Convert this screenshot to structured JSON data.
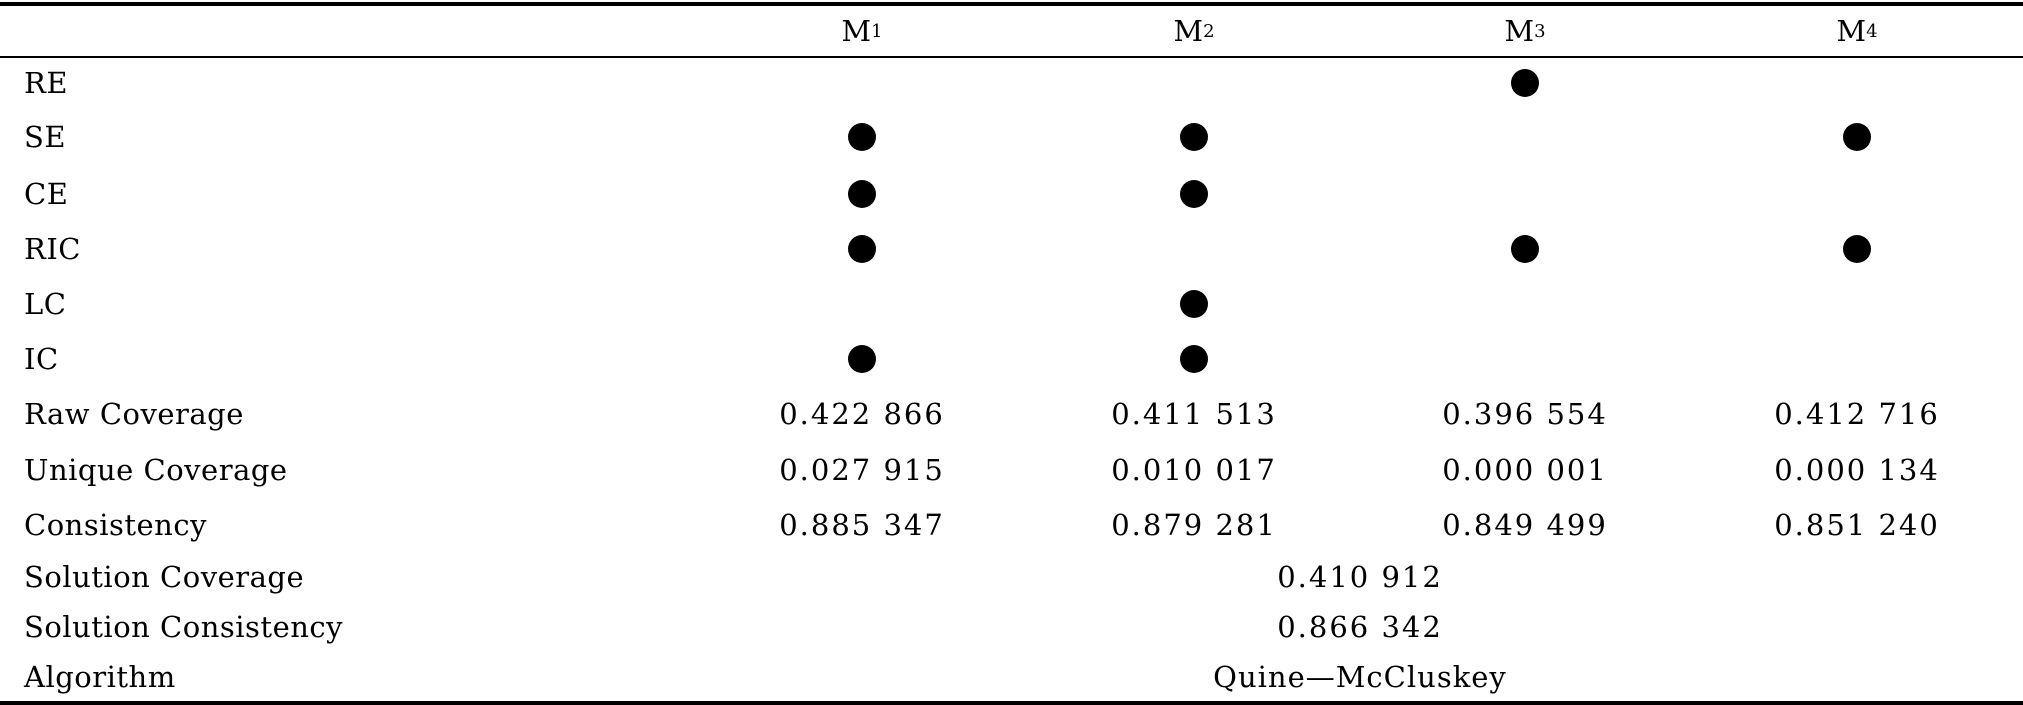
{
  "header": {
    "columns": [
      {
        "base": "M",
        "sub": "1"
      },
      {
        "base": "M",
        "sub": "2"
      },
      {
        "base": "M",
        "sub": "3"
      },
      {
        "base": "M",
        "sub": "4"
      }
    ]
  },
  "condition_rows": [
    {
      "label": "RE",
      "cells": [
        false,
        false,
        true,
        false
      ]
    },
    {
      "label": "SE",
      "cells": [
        true,
        true,
        false,
        true
      ]
    },
    {
      "label": "CE",
      "cells": [
        true,
        true,
        false,
        false
      ]
    },
    {
      "label": "RIC",
      "cells": [
        true,
        false,
        true,
        true
      ]
    },
    {
      "label": "LC",
      "cells": [
        false,
        true,
        false,
        false
      ]
    },
    {
      "label": "IC",
      "cells": [
        true,
        true,
        false,
        false
      ]
    }
  ],
  "value_rows": [
    {
      "label": "Raw Coverage",
      "values": [
        "0.422 866",
        "0.411 513",
        "0.396 554",
        "0.412 716"
      ]
    },
    {
      "label": "Unique Coverage",
      "values": [
        "0.027 915",
        "0.010 017",
        "0.000 001",
        "0.000 134"
      ]
    },
    {
      "label": "Consistency",
      "values": [
        "0.885 347",
        "0.879 281",
        "0.849 499",
        "0.851 240"
      ]
    }
  ],
  "summary_rows": [
    {
      "label": "Solution Coverage",
      "value": "0.410 912"
    },
    {
      "label": "Solution Consistency",
      "value": "0.866 342"
    },
    {
      "label": "Algorithm",
      "value": "Quine—McCluskey"
    }
  ]
}
